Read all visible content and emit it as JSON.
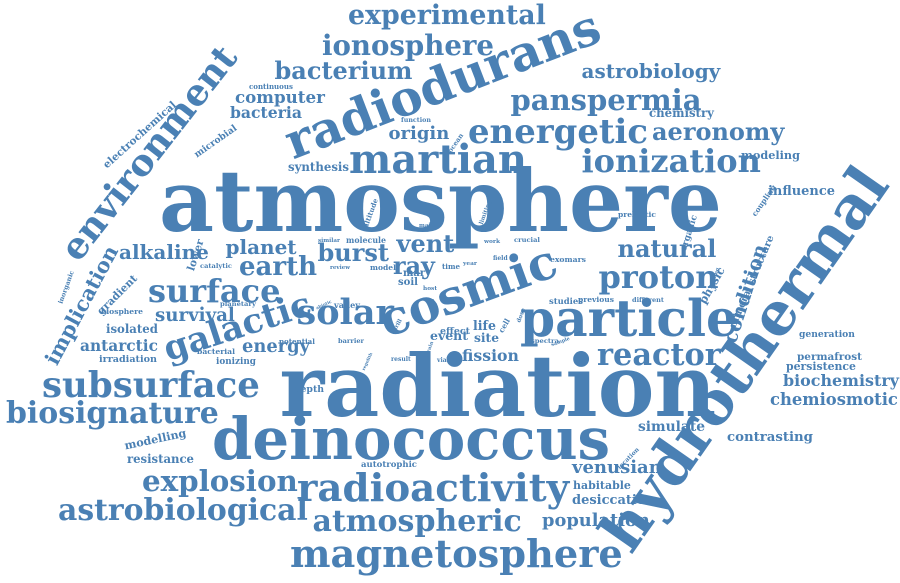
{
  "colors": {
    "word": "#4a80b4",
    "background": "#ffffff"
  },
  "words": [
    "atmosphere",
    "radiation",
    "cosmic",
    "radiodurans",
    "deinococcus",
    "hydrothermal",
    "particle",
    "environment",
    "magnetosphere",
    "radioactivity",
    "galactic",
    "martian",
    "energetic",
    "solar",
    "subsurface",
    "astrobiological",
    "ionization",
    "surface",
    "proton",
    "reactor",
    "biosignature",
    "panspermia",
    "implication",
    "experimental",
    "ionosphere",
    "atmospheric",
    "explosion",
    "aeronomy",
    "bacterium",
    "astrobiology",
    "earth",
    "natural",
    "burst",
    "vent",
    "ray",
    "modelling",
    "condition",
    "biochemistry",
    "chemiosmotic",
    "alkaline",
    "planet",
    "survival",
    "energy",
    "population",
    "venusian",
    "computer",
    "bacteria",
    "origin",
    "chemistry",
    "modeling",
    "contrasting",
    "desiccation",
    "habitable",
    "simulate",
    "fission",
    "antarctic",
    "isolated",
    "resistance",
    "physic",
    "mineral structure",
    "organic",
    "influence",
    "coupling",
    "gradient",
    "lower",
    "permafrost",
    "persistence",
    "generation",
    "event",
    "life",
    "site",
    "soil",
    "mar",
    "electrochemical",
    "microbial",
    "synthesis",
    "ocean",
    "function",
    "continuous",
    "altitude",
    "inorganic",
    "autotrophic",
    "location",
    "depth",
    "ionizing",
    "bacterial",
    "irradiation",
    "biosphere",
    "planetary",
    "catalytic",
    "review",
    "model",
    "time",
    "year",
    "field",
    "work",
    "crucial",
    "exomars",
    "studies",
    "previous",
    "different",
    "prebiotic",
    "ionising",
    "limiting",
    "major",
    "similar",
    "molecule",
    "valley",
    "abiotic",
    "potential",
    "barrier",
    "effect",
    "spectra",
    "sample",
    "cell",
    "dose",
    "result",
    "viable",
    "strain",
    "regolith",
    "drill",
    "host",
    "loss"
  ]
}
